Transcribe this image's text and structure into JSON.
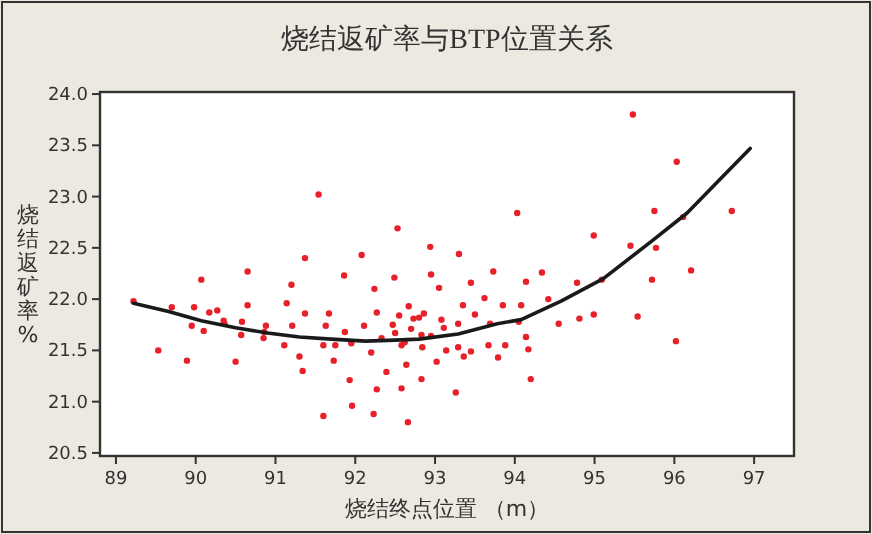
{
  "chart_data": {
    "type": "scatter",
    "title": "烧结返矿率与BTP位置关系",
    "xlabel": "烧结终点位置 （m）",
    "ylabel": "烧结返矿率%",
    "xlim": [
      88.8,
      97.5
    ],
    "ylim": [
      20.47,
      24.02
    ],
    "xticks": [
      89,
      90,
      91,
      92,
      93,
      94,
      95,
      96,
      97
    ],
    "yticks": [
      {
        "value": 20.5,
        "label": "20.5"
      },
      {
        "value": 21,
        "label": "21.0"
      },
      {
        "value": 21.5,
        "label": "21.5"
      },
      {
        "value": 22,
        "label": "22.0"
      },
      {
        "value": 22.5,
        "label": "22.5"
      },
      {
        "value": 23,
        "label": "23.0"
      },
      {
        "value": 23.5,
        "label": "23.5"
      },
      {
        "value": 24,
        "label": "24.0"
      }
    ],
    "grid": false,
    "series": [
      {
        "marker": "circle",
        "color": "#e8202a",
        "x": [
          89.22,
          89.53,
          89.7,
          89.89,
          89.98,
          89.95,
          90.07,
          90.1,
          90.17,
          90.27,
          90.35,
          90.36,
          90.5,
          90.58,
          90.57,
          90.65,
          90.65,
          90.86,
          90.88,
          90.85,
          91.11,
          91.14,
          91.2,
          91.21,
          91.3,
          91.34,
          91.37,
          91.37,
          91.54,
          91.6,
          91.6,
          91.67,
          91.63,
          91.73,
          91.75,
          91.86,
          91.87,
          91.93,
          91.96,
          91.95,
          92.08,
          92.11,
          92.2,
          92.24,
          92.27,
          92.27,
          92.23,
          92.33,
          92.39,
          92.47,
          92.49,
          92.5,
          92.53,
          92.55,
          92.58,
          92.58,
          92.62,
          92.64,
          92.67,
          92.66,
          92.7,
          92.73,
          92.8,
          92.84,
          92.83,
          92.83,
          92.86,
          92.94,
          92.95,
          92.95,
          93.02,
          93.05,
          93.08,
          93.11,
          93.14,
          93.26,
          93.29,
          93.3,
          93.29,
          93.35,
          93.36,
          93.45,
          93.45,
          93.5,
          93.62,
          93.67,
          93.69,
          93.73,
          93.79,
          93.85,
          93.88,
          94.03,
          94.08,
          94.05,
          94.14,
          94.14,
          94.17,
          94.2,
          94.34,
          94.42,
          94.55,
          94.78,
          94.81,
          94.99,
          94.99,
          95.09,
          95.45,
          95.48,
          95.54,
          95.72,
          95.75,
          95.77,
          96.02,
          96.03,
          96.11,
          96.21,
          96.72
        ],
        "values": [
          21.98,
          21.5,
          21.92,
          21.4,
          21.92,
          21.74,
          22.19,
          21.69,
          21.87,
          21.89,
          21.79,
          21.76,
          21.39,
          21.78,
          21.65,
          21.94,
          22.27,
          21.68,
          21.74,
          21.62,
          21.55,
          21.96,
          22.14,
          21.74,
          21.44,
          21.3,
          22.4,
          21.86,
          23.02,
          21.55,
          20.86,
          21.86,
          21.74,
          21.4,
          21.55,
          22.23,
          21.68,
          21.21,
          20.96,
          21.57,
          22.43,
          21.74,
          21.48,
          22.1,
          21.87,
          21.12,
          20.88,
          21.62,
          21.29,
          21.75,
          22.21,
          21.67,
          22.69,
          21.84,
          21.55,
          21.13,
          21.58,
          21.36,
          21.93,
          20.8,
          21.71,
          21.81,
          21.82,
          21.53,
          21.22,
          21.65,
          21.86,
          22.51,
          22.24,
          21.64,
          21.39,
          22.11,
          21.8,
          21.72,
          21.5,
          21.09,
          21.76,
          22.44,
          21.53,
          21.94,
          21.44,
          22.16,
          21.49,
          21.85,
          22.01,
          21.55,
          21.76,
          22.27,
          21.43,
          21.94,
          21.55,
          22.84,
          21.94,
          21.78,
          22.17,
          21.63,
          21.51,
          21.22,
          22.26,
          22.0,
          21.76,
          22.16,
          21.81,
          22.62,
          21.85,
          22.19,
          22.52,
          23.8,
          21.83,
          22.19,
          22.86,
          22.5,
          21.59,
          23.34,
          22.8,
          22.28,
          22.86
        ]
      },
      {
        "type": "line",
        "marker": "none",
        "color": "#1a1a1a",
        "x": [
          89.22,
          89.66,
          90.07,
          90.5,
          90.9,
          91.3,
          91.7,
          92.13,
          92.5,
          92.8,
          93.29,
          93.78,
          94.08,
          94.58,
          95.11,
          95.74,
          96.16,
          96.95
        ],
        "values": [
          21.96,
          21.88,
          21.79,
          21.72,
          21.67,
          21.63,
          21.61,
          21.59,
          21.6,
          21.61,
          21.66,
          21.76,
          21.8,
          21.98,
          22.2,
          22.58,
          22.84,
          23.47
        ]
      }
    ]
  }
}
